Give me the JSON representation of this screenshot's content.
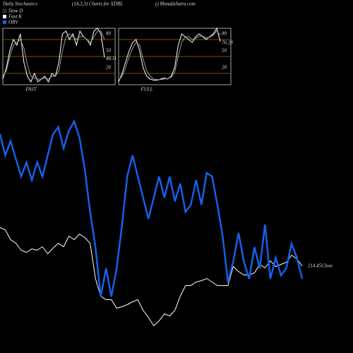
{
  "header": {
    "title": "Daily Stochastics",
    "subtitle": "(14,3,3) Charts for XDBL",
    "source": "() MunafaSutra.com"
  },
  "chart_data": [
    {
      "type": "line",
      "label": "FAST",
      "ylim": [
        0,
        100
      ],
      "yticks": [
        20,
        50,
        80
      ],
      "grid": true,
      "grid_color": "#a0661e",
      "series": [
        {
          "name": "Fast K",
          "color": "#ffffff",
          "values": [
            10,
            30,
            60,
            80,
            70,
            90,
            40,
            15,
            5,
            20,
            5,
            10,
            15,
            5,
            20,
            15,
            40,
            90,
            95,
            80,
            90,
            70,
            95,
            85,
            80,
            70,
            95,
            100,
            90,
            48.11
          ]
        },
        {
          "name": "Slow D",
          "color": "#9a9a9a",
          "values": [
            15,
            25,
            50,
            70,
            75,
            80,
            65,
            35,
            15,
            12,
            10,
            10,
            12,
            10,
            15,
            15,
            25,
            60,
            85,
            90,
            85,
            80,
            85,
            85,
            80,
            75,
            85,
            95,
            95,
            80
          ]
        }
      ]
    },
    {
      "type": "line",
      "label": "FULL",
      "ylim": [
        0,
        100
      ],
      "yticks": [
        20,
        50,
        80
      ],
      "grid": true,
      "grid_color": "#a0661e",
      "series": [
        {
          "color": "#ffffff",
          "values": [
            5,
            20,
            40,
            60,
            75,
            80,
            60,
            30,
            15,
            10,
            8,
            8,
            10,
            12,
            10,
            15,
            30,
            70,
            90,
            85,
            80,
            75,
            85,
            90,
            85,
            80,
            85,
            90,
            100,
            76.28
          ]
        },
        {
          "color": "#9a9a9a",
          "values": [
            8,
            15,
            30,
            50,
            65,
            75,
            70,
            45,
            25,
            15,
            10,
            9,
            9,
            10,
            11,
            13,
            22,
            50,
            75,
            85,
            85,
            80,
            82,
            86,
            86,
            83,
            84,
            88,
            95,
            88
          ]
        }
      ]
    },
    {
      "type": "line",
      "ylim": [
        204.15,
        237.15
      ],
      "y2lim": [
        0,
        330
      ],
      "series": [
        {
          "name": "Close",
          "color": "#ffffff",
          "end_label": "214.45Close",
          "values": [
            219.9,
            219.6,
            218.2,
            217.7,
            216.7,
            216.4,
            216.9,
            216.7,
            217.2,
            216.2,
            217.0,
            217.7,
            217.2,
            218.7,
            218.2,
            219.0,
            218.5,
            217.7,
            212.7,
            210.2,
            209.7,
            209.7,
            208.5,
            208.7,
            209.0,
            209.4,
            209.7,
            208.2,
            207.2,
            206.0,
            206.7,
            207.7,
            207.4,
            208.2,
            210.2,
            211.7,
            211.7,
            212.2,
            212.4,
            212.7,
            212.2,
            211.7,
            211.7,
            211.7,
            214.4,
            213.7,
            213.2,
            213.2,
            213.5,
            214.7,
            214.2,
            215.2,
            214.4,
            214.7,
            215.0,
            216.0,
            215.5,
            214.45
          ]
        },
        {
          "name": "OBV",
          "color": "#1560e8",
          "axis": "y2",
          "values": [
            290,
            260,
            280,
            255,
            230,
            250,
            225,
            250,
            230,
            260,
            290,
            300,
            270,
            295,
            308,
            285,
            240,
            180,
            130,
            60,
            100,
            60,
            100,
            160,
            230,
            260,
            230,
            200,
            170,
            200,
            230,
            200,
            230,
            195,
            220,
            180,
            190,
            225,
            190,
            235,
            230,
            190,
            145,
            80,
            110,
            150,
            110,
            85,
            130,
            100,
            162,
            85,
            115,
            90,
            100,
            135,
            115,
            85
          ]
        }
      ]
    }
  ]
}
